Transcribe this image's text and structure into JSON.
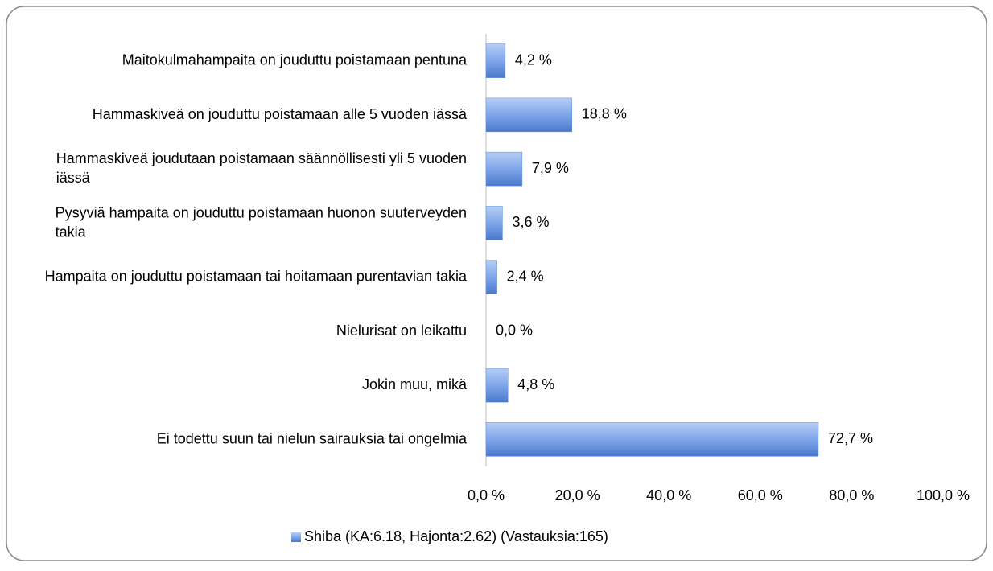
{
  "chart_data": {
    "type": "bar",
    "orientation": "horizontal",
    "categories": [
      "Maitokulmahampaita on jouduttu poistamaan pentuna",
      "Hammaskiveä on jouduttu poistamaan alle 5 vuoden iässä",
      "Hammaskiveä joudutaan poistamaan säännöllisesti yli 5 vuoden iässä",
      "Pysyviä hampaita on jouduttu poistamaan huonon suuterveyden takia",
      "Hampaita on jouduttu poistamaan tai hoitamaan purentavian takia",
      "Nielurisat on leikattu",
      "Jokin muu, mikä",
      "Ei todettu suun tai nielun sairauksia tai ongelmia"
    ],
    "series": [
      {
        "name": "Shiba (KA:6.18, Hajonta:2.62) (Vastauksia:165)",
        "color": "#5b8fe0",
        "values": [
          4.2,
          18.8,
          7.9,
          3.6,
          2.4,
          0.0,
          4.8,
          72.7
        ],
        "value_labels": [
          "4,2 %",
          "18,8 %",
          "7,9 %",
          "3,6 %",
          "2,4 %",
          "0,0 %",
          "4,8 %",
          "72,7 %"
        ]
      }
    ],
    "xlim": [
      0,
      100
    ],
    "xticks": [
      {
        "value": 0,
        "label": "0,0 %"
      },
      {
        "value": 20,
        "label": "20,0 %"
      },
      {
        "value": 40,
        "label": "40,0 %"
      },
      {
        "value": 60,
        "label": "60,0 %"
      },
      {
        "value": 80,
        "label": "80,0 %"
      },
      {
        "value": 100,
        "label": "100,0 %"
      }
    ],
    "legend": "bottom"
  }
}
